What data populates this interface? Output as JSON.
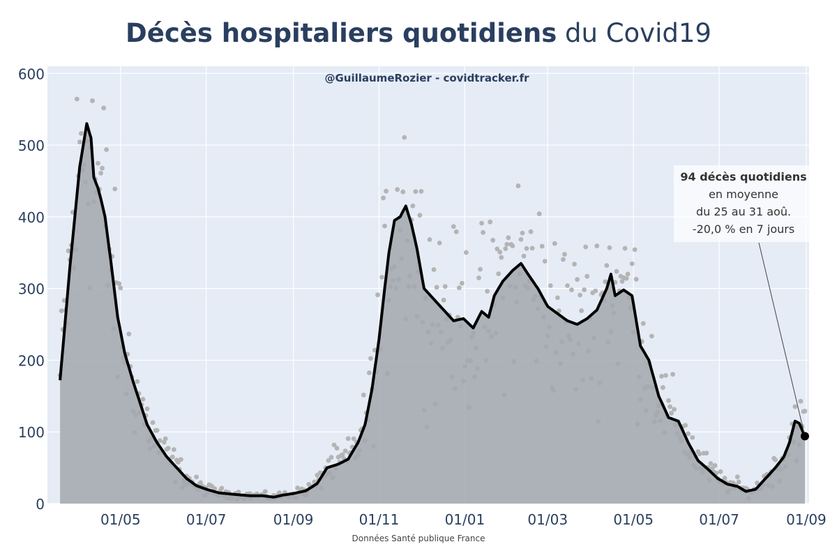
{
  "title": {
    "bold": "Décès hospitaliers quotidiens",
    "rest": " du Covid19"
  },
  "credit": "@GuillaumeRozier - covidtracker.fr",
  "source": "Données Santé publique France",
  "colors": {
    "background": "#e5ecf6",
    "grid": "#ffffff",
    "area": "#a3a7ad",
    "line": "#000000",
    "dots": "#b4b4b4",
    "text": "#2a3f5f"
  },
  "annotation": {
    "line1": "94 décès quotidiens",
    "line2": "en moyenne",
    "line3": "du 25 au 31 aoû.",
    "line4": "-20,0 % en 7 jours"
  },
  "chart_data": {
    "type": "area",
    "x_dates_start": "2020-03-19",
    "x_dates_end": "2021-08-31",
    "ylim": [
      0,
      610
    ],
    "yticks": [
      0,
      100,
      200,
      300,
      400,
      500,
      600
    ],
    "xticks": [
      {
        "date": "2020-05-01",
        "label": "01/05"
      },
      {
        "date": "2020-07-01",
        "label": "01/07"
      },
      {
        "date": "2020-09-01",
        "label": "01/09"
      },
      {
        "date": "2020-11-01",
        "label": "01/11"
      },
      {
        "date": "2021-01-01",
        "label": "01/01"
      },
      {
        "date": "2021-03-01",
        "label": "01/03"
      },
      {
        "date": "2021-05-01",
        "label": "01/05"
      },
      {
        "date": "2021-07-01",
        "label": "01/07"
      },
      {
        "date": "2021-09-01",
        "label": "01/09"
      }
    ],
    "series": [
      {
        "kind": "7-day rolling average",
        "points": [
          [
            "2020-03-19",
            172
          ],
          [
            "2020-03-26",
            330
          ],
          [
            "2020-04-02",
            470
          ],
          [
            "2020-04-07",
            530
          ],
          [
            "2020-04-10",
            510
          ],
          [
            "2020-04-12",
            455
          ],
          [
            "2020-04-15",
            440
          ],
          [
            "2020-04-17",
            425
          ],
          [
            "2020-04-20",
            400
          ],
          [
            "2020-04-24",
            340
          ],
          [
            "2020-04-29",
            260
          ],
          [
            "2020-05-04",
            210
          ],
          [
            "2020-05-10",
            170
          ],
          [
            "2020-05-15",
            140
          ],
          [
            "2020-05-20",
            110
          ],
          [
            "2020-05-27",
            85
          ],
          [
            "2020-06-03",
            65
          ],
          [
            "2020-06-10",
            50
          ],
          [
            "2020-06-17",
            35
          ],
          [
            "2020-06-24",
            25
          ],
          [
            "2020-07-01",
            20
          ],
          [
            "2020-07-10",
            15
          ],
          [
            "2020-07-20",
            13
          ],
          [
            "2020-08-01",
            11
          ],
          [
            "2020-08-10",
            11
          ],
          [
            "2020-08-18",
            9
          ],
          [
            "2020-08-25",
            12
          ],
          [
            "2020-09-01",
            14
          ],
          [
            "2020-09-10",
            18
          ],
          [
            "2020-09-18",
            28
          ],
          [
            "2020-09-25",
            50
          ],
          [
            "2020-10-03",
            55
          ],
          [
            "2020-10-10",
            62
          ],
          [
            "2020-10-17",
            85
          ],
          [
            "2020-10-22",
            110
          ],
          [
            "2020-10-27",
            160
          ],
          [
            "2020-11-01",
            230
          ],
          [
            "2020-11-05",
            300
          ],
          [
            "2020-11-08",
            350
          ],
          [
            "2020-11-12",
            395
          ],
          [
            "2020-11-16",
            400
          ],
          [
            "2020-11-20",
            415
          ],
          [
            "2020-11-24",
            390
          ],
          [
            "2020-11-28",
            355
          ],
          [
            "2020-12-03",
            300
          ],
          [
            "2020-12-10",
            285
          ],
          [
            "2020-12-17",
            270
          ],
          [
            "2020-12-24",
            255
          ],
          [
            "2020-12-31",
            258
          ],
          [
            "2021-01-07",
            245
          ],
          [
            "2021-01-13",
            268
          ],
          [
            "2021-01-18",
            260
          ],
          [
            "2021-01-22",
            290
          ],
          [
            "2021-01-28",
            310
          ],
          [
            "2021-02-04",
            325
          ],
          [
            "2021-02-10",
            335
          ],
          [
            "2021-02-15",
            320
          ],
          [
            "2021-02-22",
            300
          ],
          [
            "2021-03-01",
            275
          ],
          [
            "2021-03-08",
            265
          ],
          [
            "2021-03-15",
            255
          ],
          [
            "2021-03-22",
            250
          ],
          [
            "2021-03-29",
            258
          ],
          [
            "2021-04-05",
            270
          ],
          [
            "2021-04-12",
            300
          ],
          [
            "2021-04-15",
            320
          ],
          [
            "2021-04-18",
            290
          ],
          [
            "2021-04-24",
            298
          ],
          [
            "2021-04-30",
            290
          ],
          [
            "2021-05-06",
            220
          ],
          [
            "2021-05-12",
            200
          ],
          [
            "2021-05-19",
            150
          ],
          [
            "2021-05-26",
            120
          ],
          [
            "2021-06-02",
            115
          ],
          [
            "2021-06-09",
            85
          ],
          [
            "2021-06-16",
            60
          ],
          [
            "2021-06-23",
            48
          ],
          [
            "2021-06-30",
            35
          ],
          [
            "2021-07-07",
            27
          ],
          [
            "2021-07-14",
            24
          ],
          [
            "2021-07-20",
            17
          ],
          [
            "2021-07-27",
            20
          ],
          [
            "2021-08-03",
            35
          ],
          [
            "2021-08-10",
            50
          ],
          [
            "2021-08-16",
            65
          ],
          [
            "2021-08-20",
            85
          ],
          [
            "2021-08-24",
            115
          ],
          [
            "2021-08-27",
            112
          ],
          [
            "2021-08-31",
            94
          ]
        ]
      }
    ],
    "last_point": [
      "2021-08-31",
      94
    ]
  }
}
